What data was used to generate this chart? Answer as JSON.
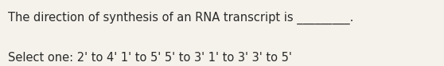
{
  "line1": "The direction of synthesis of an RNA transcript is _________.",
  "line2": "Select one: 2' to 4' 1' to 5' 5' to 3' 1' to 3' 3' to 5'",
  "background_color": "#f5f2eb",
  "text_color": "#2a2a2a",
  "font_size": 10.5,
  "fig_width": 5.58,
  "fig_height": 0.84,
  "dpi": 100
}
